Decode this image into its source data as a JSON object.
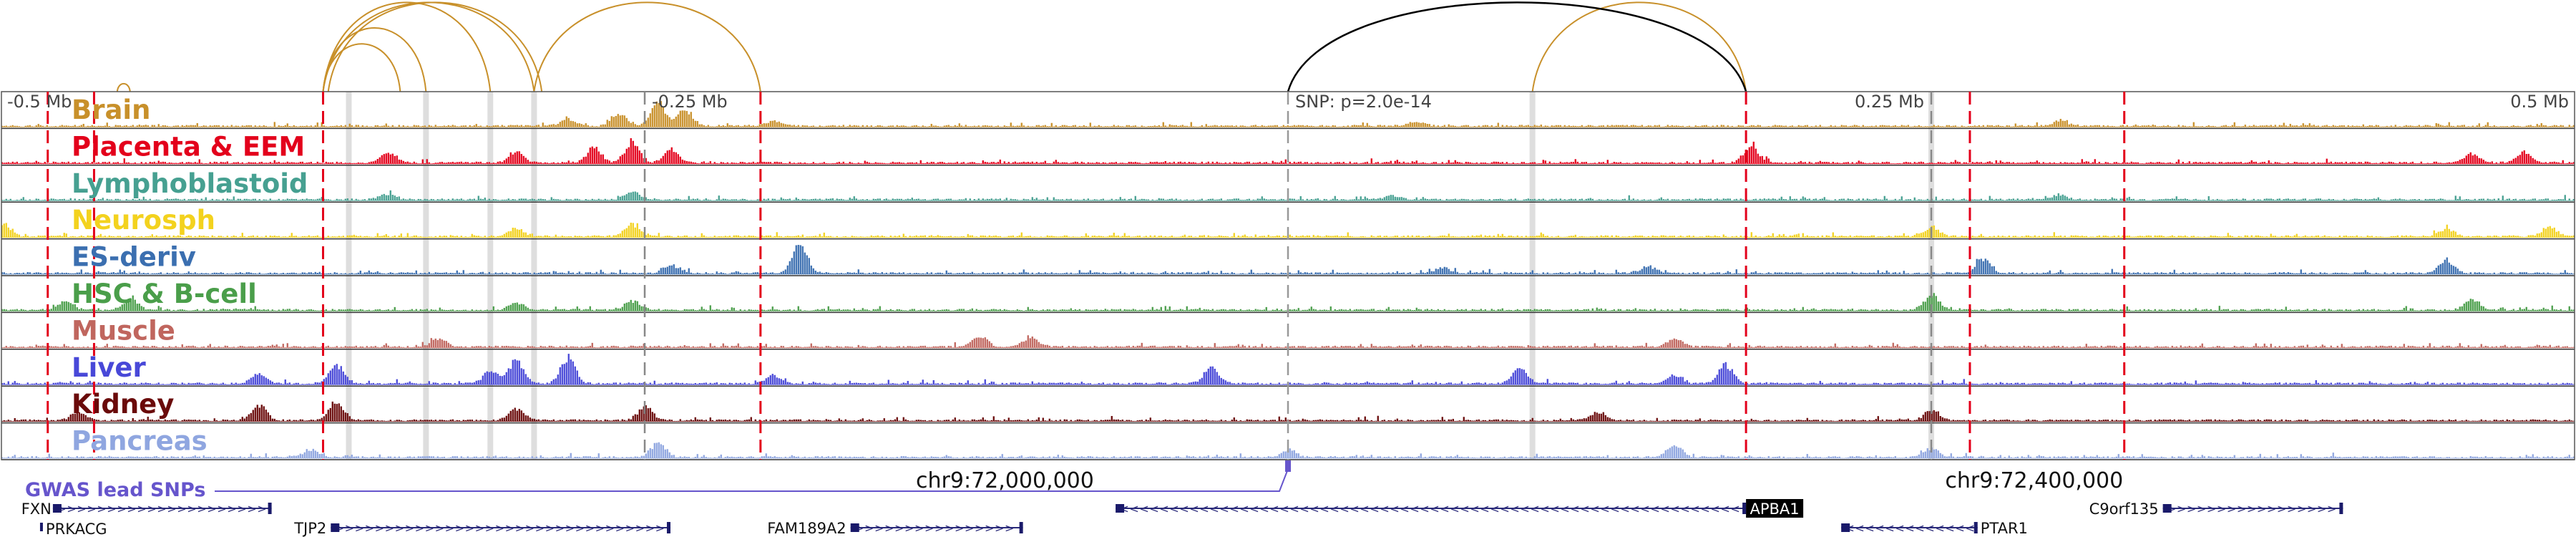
{
  "chart_data": {
    "type": "area",
    "title": "",
    "region": {
      "x_range_mb": [
        -0.5,
        0.5
      ],
      "center_coord": "chr9:72,000,000",
      "snp_position_mb": 0.0,
      "tick_labels": [
        "-0.5 Mb",
        "-0.25 Mb",
        "0.25 Mb",
        "0.5 Mb"
      ],
      "tick_positions_mb": [
        -0.5,
        -0.25,
        0.25,
        0.5
      ]
    },
    "snp_label": "SNP: p=2.0e-14",
    "coord_labels": [
      {
        "text": "chr9:72,000,000",
        "pos_mb": -0.11
      },
      {
        "text": "chr9:72,400,000",
        "pos_mb": 0.29
      }
    ],
    "tracks": [
      {
        "name": "Brain",
        "color": "#c8902a",
        "peaks": [
          [
            -0.28,
            0.25
          ],
          [
            -0.26,
            0.45
          ],
          [
            -0.245,
            0.9
          ],
          [
            -0.235,
            0.55
          ],
          [
            -0.2,
            0.2
          ],
          [
            0.05,
            0.15
          ],
          [
            0.3,
            0.2
          ]
        ]
      },
      {
        "name": "Placenta & EEM",
        "color": "#e3001b",
        "peaks": [
          [
            -0.35,
            0.35
          ],
          [
            -0.3,
            0.4
          ],
          [
            -0.27,
            0.55
          ],
          [
            -0.255,
            0.75
          ],
          [
            -0.24,
            0.5
          ],
          [
            0.18,
            0.6
          ],
          [
            0.46,
            0.35
          ],
          [
            0.48,
            0.4
          ]
        ]
      },
      {
        "name": "Lymphoblastoid",
        "color": "#46a091",
        "peaks": [
          [
            -0.35,
            0.2
          ],
          [
            -0.255,
            0.3
          ],
          [
            0.04,
            0.15
          ],
          [
            0.3,
            0.15
          ]
        ]
      },
      {
        "name": "Neurosph",
        "color": "#f3d21e",
        "peaks": [
          [
            -0.5,
            0.5
          ],
          [
            -0.3,
            0.3
          ],
          [
            -0.255,
            0.45
          ],
          [
            0.25,
            0.35
          ],
          [
            0.45,
            0.3
          ],
          [
            0.49,
            0.35
          ]
        ]
      },
      {
        "name": "ES-deriv",
        "color": "#3b6fb0",
        "peaks": [
          [
            -0.24,
            0.3
          ],
          [
            -0.19,
            1.0
          ],
          [
            0.06,
            0.2
          ],
          [
            0.14,
            0.25
          ],
          [
            0.27,
            0.5
          ],
          [
            0.45,
            0.5
          ]
        ]
      },
      {
        "name": "HSC & B-cell",
        "color": "#4a9e4a",
        "peaks": [
          [
            -0.475,
            0.35
          ],
          [
            -0.45,
            0.4
          ],
          [
            -0.3,
            0.3
          ],
          [
            -0.255,
            0.35
          ],
          [
            0.25,
            0.6
          ],
          [
            0.46,
            0.4
          ]
        ]
      },
      {
        "name": "Muscle",
        "color": "#c0665e",
        "peaks": [
          [
            -0.33,
            0.3
          ],
          [
            -0.12,
            0.4
          ],
          [
            -0.1,
            0.35
          ],
          [
            0.15,
            0.3
          ]
        ]
      },
      {
        "name": "Liver",
        "color": "#4848d8",
        "peaks": [
          [
            -0.4,
            0.35
          ],
          [
            -0.37,
            0.7
          ],
          [
            -0.31,
            0.45
          ],
          [
            -0.3,
            0.9
          ],
          [
            -0.28,
            0.95
          ],
          [
            -0.2,
            0.3
          ],
          [
            -0.03,
            0.6
          ],
          [
            0.09,
            0.55
          ],
          [
            0.17,
            0.7
          ],
          [
            0.15,
            0.3
          ]
        ]
      },
      {
        "name": "Kidney",
        "color": "#6a0a0a",
        "peaks": [
          [
            -0.47,
            0.3
          ],
          [
            -0.4,
            0.55
          ],
          [
            -0.37,
            0.7
          ],
          [
            -0.3,
            0.45
          ],
          [
            -0.25,
            0.5
          ],
          [
            0.12,
            0.3
          ],
          [
            0.25,
            0.4
          ]
        ]
      },
      {
        "name": "Pancreas",
        "color": "#8fa6e0",
        "peaks": [
          [
            -0.38,
            0.3
          ],
          [
            -0.245,
            0.55
          ],
          [
            0.0,
            0.25
          ],
          [
            0.15,
            0.45
          ],
          [
            0.25,
            0.35
          ]
        ]
      }
    ],
    "gwas": {
      "label": "GWAS lead SNPs",
      "color": "#6655cc",
      "snp_pos_mb": 0.0
    },
    "genes": [
      {
        "name": "FXN",
        "start_mb": -0.48,
        "end_mb": -0.395,
        "row": 0,
        "strand": "+"
      },
      {
        "name": "PRKACG",
        "start_mb": -0.485,
        "end_mb": -0.483,
        "row": 1,
        "strand": "+"
      },
      {
        "name": "TJP2",
        "start_mb": -0.372,
        "end_mb": -0.24,
        "row": 1,
        "strand": "+"
      },
      {
        "name": "FAM189A2",
        "start_mb": -0.17,
        "end_mb": -0.103,
        "row": 1,
        "strand": "+"
      },
      {
        "name": "APBA1",
        "start_mb": -0.067,
        "end_mb": 0.178,
        "row": 0,
        "strand": "-",
        "highlight": true
      },
      {
        "name": "PTAR1",
        "start_mb": 0.215,
        "end_mb": 0.268,
        "row": 1,
        "strand": "-"
      },
      {
        "name": "C9orf135",
        "start_mb": 0.34,
        "end_mb": 0.41,
        "row": 0,
        "strand": "+"
      }
    ],
    "red_lines_mb": [
      -0.482,
      -0.464,
      -0.375,
      -0.205,
      0.178,
      0.265,
      0.325
    ],
    "gray_bands_mb": [
      -0.365,
      -0.335,
      -0.31,
      -0.293,
      0.095,
      0.25
    ],
    "arcs": [
      {
        "from_mb": -0.375,
        "to_mb": -0.335,
        "color": "#c8902a"
      },
      {
        "from_mb": -0.375,
        "to_mb": -0.345,
        "color": "#c8902a"
      },
      {
        "from_mb": -0.375,
        "to_mb": -0.31,
        "color": "#c8902a"
      },
      {
        "from_mb": -0.375,
        "to_mb": -0.293,
        "color": "#c8902a"
      },
      {
        "from_mb": -0.373,
        "to_mb": -0.29,
        "color": "#c8902a"
      },
      {
        "from_mb": -0.455,
        "to_mb": -0.45,
        "color": "#c8902a"
      },
      {
        "from_mb": -0.293,
        "to_mb": -0.205,
        "color": "#c8902a"
      },
      {
        "from_mb": 0.095,
        "to_mb": 0.178,
        "color": "#c8902a"
      },
      {
        "from_mb": 0.0,
        "to_mb": 0.178,
        "color": "#000000"
      }
    ]
  }
}
